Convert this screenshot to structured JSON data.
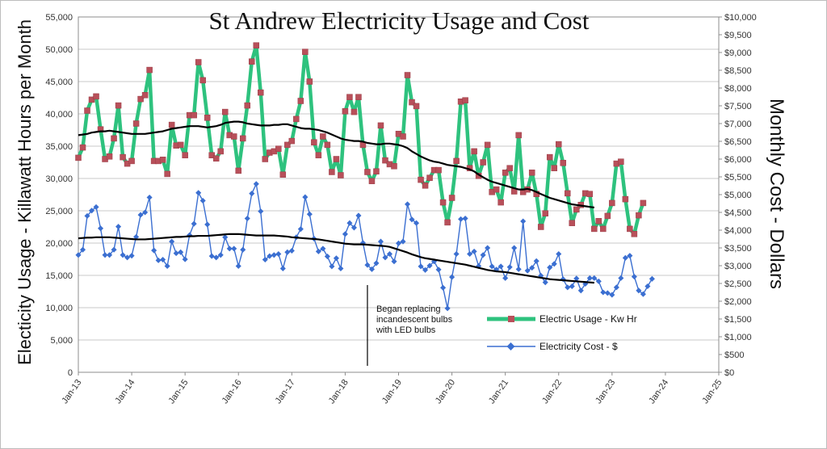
{
  "chart_data": {
    "type": "line",
    "title": "St Andrew Electricity Usage and Cost",
    "ylabel": "Electicity Usage - Killawatt Hours per Month",
    "y2label": "Monthly Cost - Dollars",
    "ylim": [
      0,
      55000
    ],
    "y2lim": [
      0,
      10000
    ],
    "xlim": [
      "Jan-13",
      "Jan-25"
    ],
    "y_ticks": [
      "0",
      "5,000",
      "10,000",
      "15,000",
      "20,000",
      "25,000",
      "30,000",
      "35,000",
      "40,000",
      "45,000",
      "50,000",
      "55,000"
    ],
    "y2_ticks": [
      "$0",
      "$500",
      "$1,000",
      "$1,500",
      "$2,000",
      "$2,500",
      "$3,000",
      "$3,500",
      "$4,000",
      "$4,500",
      "$5,000",
      "$5,500",
      "$6,000",
      "$6,500",
      "$7,000",
      "$7,500",
      "$8,000",
      "$8,500",
      "$9,000",
      "$9,500",
      "$10,000"
    ],
    "x_ticks": [
      "Jan-13",
      "Jan-14",
      "Jan-15",
      "Jan-16",
      "Jan-17",
      "Jan-18",
      "Jan-19",
      "Jan-20",
      "Jan-21",
      "Jan-22",
      "Jan-23",
      "Jan-24",
      "Jan-25"
    ],
    "grid": "horizontal",
    "legend_position": "bottom-center",
    "series": [
      {
        "name": "Electric Usage - Kw Hr",
        "axis": "left",
        "color": "#2ec27e",
        "marker_color": "#b8505a",
        "start": "Jan-13",
        "values": [
          33200,
          34800,
          40500,
          42200,
          42700,
          37600,
          33000,
          33400,
          36200,
          41300,
          33300,
          32300,
          32700,
          38500,
          42300,
          42900,
          46800,
          32700,
          32700,
          32900,
          30700,
          38300,
          35100,
          35200,
          33600,
          39800,
          39800,
          48000,
          45200,
          39400,
          33600,
          33100,
          34200,
          40300,
          36700,
          36500,
          31200,
          36200,
          41300,
          48100,
          50600,
          43300,
          33000,
          34000,
          34200,
          34600,
          30600,
          35200,
          35800,
          39200,
          42000,
          49600,
          45000,
          35600,
          33600,
          36500,
          35200,
          31000,
          33000,
          30500,
          40400,
          42600,
          40300,
          42600,
          35200,
          31000,
          29600,
          31100,
          38200,
          32800,
          32200,
          31900,
          36900,
          36500,
          46000,
          41800,
          41200,
          29800,
          28900,
          30100,
          31300,
          31300,
          26300,
          23200,
          27000,
          32700,
          41900,
          42100,
          31600,
          34200,
          30400,
          32500,
          35200,
          27900,
          28300,
          26300,
          30900,
          31600,
          28000,
          36700,
          27900,
          28300,
          30900,
          27600,
          22500,
          24600,
          33300,
          31600,
          35300,
          32400,
          27700,
          23100,
          25200,
          25900,
          27700,
          27600,
          22200,
          23400,
          22200,
          24200,
          26200,
          32300,
          32600,
          26800,
          22200,
          21400,
          24300,
          26200
        ]
      },
      {
        "name": "Electricity Cost - $",
        "axis": "right",
        "color": "#3b6fd1",
        "marker_color": "#3b6fd1",
        "start": "Jan-13",
        "values": [
          3300,
          3450,
          4400,
          4550,
          4650,
          4050,
          3300,
          3300,
          3450,
          4100,
          3300,
          3230,
          3280,
          3810,
          4430,
          4500,
          4920,
          3430,
          3150,
          3170,
          2990,
          3680,
          3350,
          3380,
          3180,
          3860,
          4180,
          5050,
          4830,
          4160,
          3270,
          3230,
          3300,
          3800,
          3480,
          3480,
          2990,
          3450,
          4330,
          5030,
          5300,
          4530,
          3170,
          3270,
          3300,
          3330,
          2920,
          3380,
          3420,
          3800,
          4030,
          4930,
          4450,
          3760,
          3400,
          3480,
          3260,
          2980,
          3210,
          2920,
          3890,
          4200,
          4070,
          4410,
          3640,
          3020,
          2900,
          3070,
          3680,
          3230,
          3330,
          3120,
          3630,
          3680,
          4730,
          4300,
          4200,
          2980,
          2880,
          3000,
          3120,
          2890,
          2380,
          1800,
          2680,
          3330,
          4310,
          4330,
          3330,
          3400,
          2990,
          3300,
          3500,
          2980,
          2890,
          2980,
          2650,
          2960,
          3500,
          2900,
          4250,
          2860,
          2940,
          3130,
          2720,
          2530,
          2950,
          3050,
          3330,
          2620,
          2390,
          2420,
          2640,
          2300,
          2490,
          2650,
          2650,
          2560,
          2250,
          2230,
          2180,
          2390,
          2650,
          3220,
          3280,
          2690,
          2300,
          2200,
          2420,
          2630
        ]
      }
    ],
    "trend_lines": [
      {
        "series": "Electric Usage - Kw Hr",
        "color": "#000000",
        "axis": "left",
        "start": "Jan-13",
        "values": [
          36700,
          36800,
          36900,
          37100,
          37200,
          37300,
          37300,
          37400,
          37300,
          37200,
          37100,
          37000,
          36900,
          36900,
          36900,
          36900,
          37000,
          37100,
          37200,
          37300,
          37500,
          37700,
          37800,
          37900,
          38000,
          38100,
          38100,
          38100,
          38000,
          37900,
          38000,
          38100,
          38300,
          38600,
          38700,
          38800,
          38800,
          38700,
          38500,
          38400,
          38300,
          38200,
          38200,
          38200,
          38300,
          38300,
          38400,
          38400,
          38200,
          38000,
          37800,
          37700,
          37700,
          37600,
          37500,
          37300,
          37100,
          36800,
          36500,
          36200,
          36000,
          35900,
          35800,
          35800,
          35700,
          35500,
          35400,
          35300,
          35300,
          35400,
          35400,
          35300,
          35200,
          35000,
          34700,
          34200,
          33800,
          33400,
          33100,
          32800,
          32600,
          32500,
          32300,
          32100,
          32000,
          31900,
          31800,
          31600,
          31400,
          31100,
          30600,
          30200,
          29800,
          29500,
          29300,
          29100,
          28900,
          28700,
          28500,
          28300,
          28300,
          28400,
          28200,
          27900,
          27600,
          27300,
          27000,
          26800,
          26600,
          26400,
          26200,
          26000,
          25900,
          25800,
          25700,
          25600,
          25500
        ]
      },
      {
        "series": "Electricity Cost - $",
        "color": "#000000",
        "axis": "right",
        "start": "Jan-13",
        "values": [
          3770,
          3780,
          3790,
          3790,
          3800,
          3800,
          3800,
          3800,
          3790,
          3780,
          3770,
          3760,
          3750,
          3740,
          3740,
          3740,
          3750,
          3760,
          3770,
          3780,
          3790,
          3800,
          3810,
          3810,
          3820,
          3830,
          3830,
          3840,
          3840,
          3840,
          3850,
          3860,
          3870,
          3880,
          3890,
          3890,
          3890,
          3880,
          3870,
          3860,
          3850,
          3850,
          3850,
          3850,
          3850,
          3840,
          3830,
          3820,
          3800,
          3790,
          3780,
          3770,
          3760,
          3750,
          3740,
          3720,
          3700,
          3680,
          3660,
          3640,
          3620,
          3610,
          3600,
          3600,
          3600,
          3590,
          3580,
          3570,
          3560,
          3550,
          3530,
          3490,
          3450,
          3410,
          3370,
          3320,
          3280,
          3240,
          3210,
          3190,
          3170,
          3150,
          3130,
          3110,
          3090,
          3070,
          3050,
          3030,
          3000,
          2970,
          2940,
          2910,
          2880,
          2860,
          2840,
          2830,
          2820,
          2800,
          2780,
          2760,
          2740,
          2720,
          2700,
          2680,
          2660,
          2640,
          2620,
          2610,
          2600,
          2590,
          2580,
          2570,
          2560,
          2550,
          2540,
          2530,
          2520
        ]
      }
    ],
    "annotations": [
      {
        "text_lines": [
          "Began replacing",
          "incandescent bulbs",
          "with LED bulbs"
        ],
        "x": "Jun-18"
      }
    ]
  }
}
